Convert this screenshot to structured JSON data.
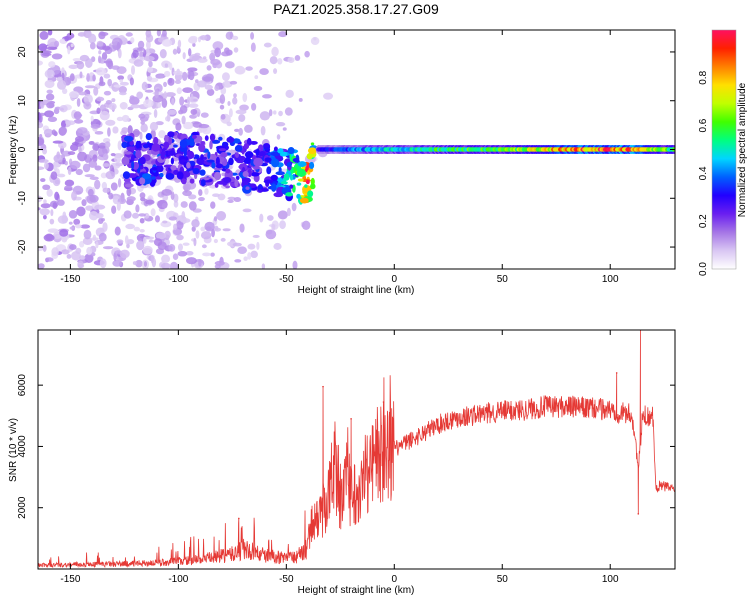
{
  "chart_data": [
    {
      "type": "heatmap",
      "title": "PAZ1.2025.358.17.27.G09",
      "xlabel": "Height of straight line (km)",
      "ylabel": "Frequency (Hz)",
      "xlim": [
        -165,
        130
      ],
      "ylim": [
        -24.5,
        24.5
      ],
      "xticks": [
        -150,
        -100,
        -50,
        0,
        50,
        100
      ],
      "yticks": [
        -20,
        -10,
        0,
        10,
        20
      ],
      "colorbar": {
        "label": "Normalized spectral amplitude",
        "range": [
          0,
          1
        ],
        "ticks": [
          "0.0",
          "0.2",
          "0.4",
          "0.6",
          "0.8"
        ],
        "colors": [
          "#ffffff",
          "#d9c6f3",
          "#a575e6",
          "#6a1ff0",
          "#2200ff",
          "#0060ff",
          "#00d5ff",
          "#00ff80",
          "#40ff00",
          "#c0ff00",
          "#ffe000",
          "#ff8000",
          "#ff2000",
          "#ff1060"
        ]
      },
      "features": {
        "signal_track": [
          {
            "x": -125,
            "f": -2.5,
            "a": 0.3
          },
          {
            "x": -110,
            "f": -2.0,
            "a": 0.33
          },
          {
            "x": -95,
            "f": -1.5,
            "a": 0.3
          },
          {
            "x": -80,
            "f": -2.5,
            "a": 0.32
          },
          {
            "x": -65,
            "f": -3.5,
            "a": 0.3
          },
          {
            "x": -55,
            "f": -4.5,
            "a": 0.35
          },
          {
            "x": -45,
            "f": -5.5,
            "a": 0.55
          },
          {
            "x": -40,
            "f": -6.5,
            "a": 0.95
          },
          {
            "x": -35,
            "f": 0.0,
            "a": 0.3
          },
          {
            "x": -10,
            "f": 0.0,
            "a": 0.45
          },
          {
            "x": 20,
            "f": 0.0,
            "a": 0.55
          },
          {
            "x": 50,
            "f": 0.0,
            "a": 0.6
          },
          {
            "x": 80,
            "f": 0.0,
            "a": 0.85
          },
          {
            "x": 110,
            "f": 0.0,
            "a": 0.9
          },
          {
            "x": 130,
            "f": 0.0,
            "a": 0.55
          }
        ],
        "noise_floor_extent_km": [
          -165,
          -25
        ]
      }
    },
    {
      "type": "line",
      "title": "",
      "xlabel": "Height of straight line (km)",
      "ylabel": "SNR (10 * v/v)",
      "xlim": [
        -165,
        130
      ],
      "ylim": [
        0,
        7800
      ],
      "xticks": [
        -150,
        -100,
        -50,
        0,
        50,
        100
      ],
      "yticks": [
        2000,
        4000,
        6000
      ],
      "line_color": "#e53935",
      "series": [
        {
          "name": "SNR",
          "x": [
            -165,
            -150,
            -130,
            -110,
            -95,
            -85,
            -75,
            -70,
            -60,
            -50,
            -45,
            -40,
            -38,
            -35,
            -32,
            -30,
            -28,
            -25,
            -22,
            -20,
            -18,
            -15,
            -12,
            -10,
            -8,
            -5,
            -2,
            0,
            5,
            10,
            15,
            20,
            25,
            30,
            40,
            50,
            60,
            70,
            80,
            90,
            100,
            105,
            110,
            112,
            113,
            115,
            118,
            120,
            121,
            125,
            130
          ],
          "y": [
            150,
            180,
            200,
            250,
            350,
            450,
            600,
            800,
            550,
            450,
            500,
            900,
            1500,
            1600,
            2000,
            2500,
            3500,
            2200,
            2700,
            2300,
            2600,
            2800,
            3200,
            3500,
            3800,
            3600,
            3700,
            3900,
            4100,
            4300,
            4500,
            4700,
            4850,
            4950,
            5050,
            5150,
            5200,
            5300,
            5300,
            5250,
            5200,
            5100,
            5050,
            4000,
            3200,
            5000,
            5000,
            4950,
            2700,
            2700,
            2600
          ],
          "spikes": [
            {
              "x": -72,
              "y": 1650
            },
            {
              "x": -33,
              "y": 5950
            },
            {
              "x": -20,
              "y": 4900
            },
            {
              "x": -5,
              "y": 5450
            },
            {
              "x": 103,
              "y": 6400
            },
            {
              "x": 113,
              "y": 1800
            },
            {
              "x": 114,
              "y": 7800
            }
          ]
        }
      ]
    }
  ]
}
